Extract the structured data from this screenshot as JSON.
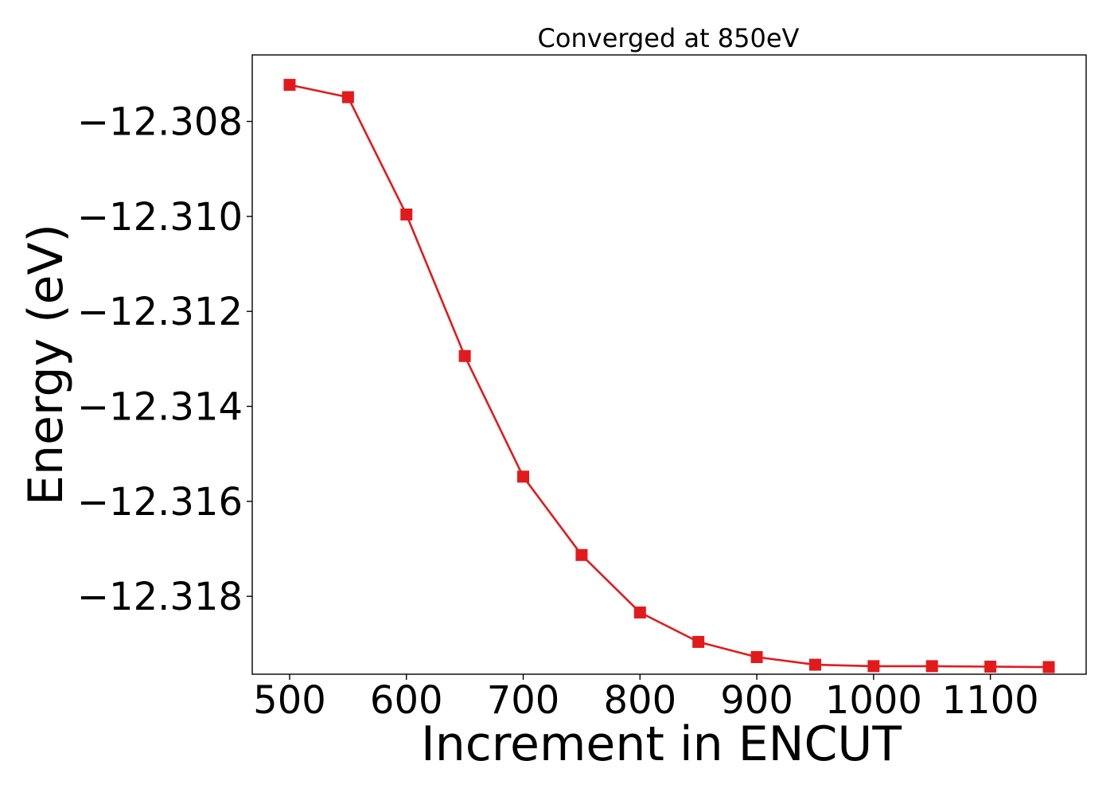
{
  "chart_data": {
    "type": "line",
    "title": "Converged at 850eV",
    "xlabel": "Increment in ENCUT",
    "ylabel": "Energy (eV)",
    "xlim": [
      468,
      1182
    ],
    "ylim": [
      -12.31964,
      -12.3066
    ],
    "xticks": [
      500,
      600,
      700,
      800,
      900,
      1000,
      1100
    ],
    "xtick_labels": [
      "500",
      "600",
      "700",
      "800",
      "900",
      "1000",
      "1100"
    ],
    "yticks": [
      -12.308,
      -12.31,
      -12.312,
      -12.314,
      -12.316,
      -12.318
    ],
    "ytick_labels": [
      "−12.308",
      "−12.310",
      "−12.312",
      "−12.314",
      "−12.316",
      "−12.318"
    ],
    "grid": false,
    "legend": false,
    "series": [
      {
        "color": "#e31a1c",
        "marker": "square",
        "x": [
          500,
          550,
          600,
          650,
          700,
          750,
          800,
          850,
          900,
          950,
          1000,
          1050,
          1100,
          1150
        ],
        "y": [
          -12.30723,
          -12.30749,
          -12.30996,
          -12.31294,
          -12.31548,
          -12.31713,
          -12.31834,
          -12.31896,
          -12.31928,
          -12.31944,
          -12.31947,
          -12.31947,
          -12.31948,
          -12.31949
        ]
      }
    ]
  }
}
